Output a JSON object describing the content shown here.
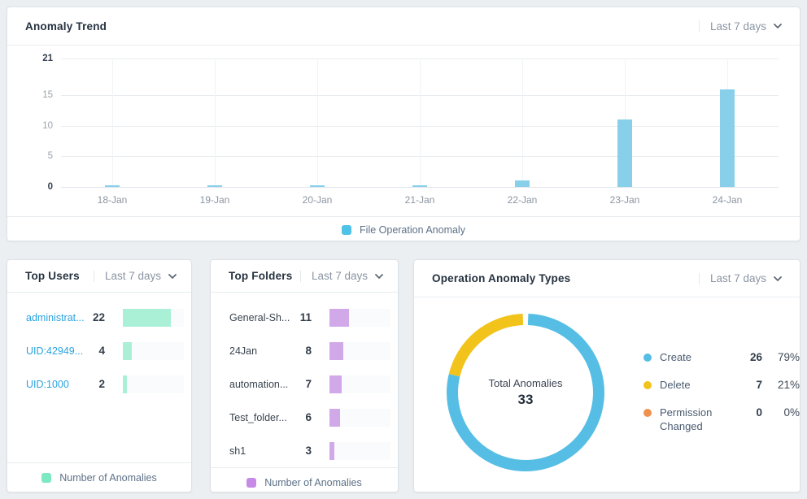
{
  "colors": {
    "trend_bar": "#88d0ea",
    "trend_legend_swatch": "#4fc2e6",
    "users_bar": "#a9f0d7",
    "users_legend_swatch": "#7de9c3",
    "folders_bar": "#d1a9e9",
    "folders_legend_swatch": "#c78ae6",
    "donut_create": "#56bee5",
    "donut_delete": "#f2c31b",
    "donut_permission": "#f0924e",
    "link_blue": "#2aa3e0"
  },
  "icons": {
    "range_chevron": "chevron-down"
  },
  "chart_data": [
    {
      "id": "anomaly-trend",
      "type": "bar",
      "title": "Anomaly Trend",
      "range_label": "Last 7 days",
      "series_name": "File Operation Anomaly",
      "categories": [
        "18-Jan",
        "19-Jan",
        "20-Jan",
        "21-Jan",
        "22-Jan",
        "23-Jan",
        "24-Jan"
      ],
      "values": [
        0,
        0,
        0,
        0,
        1,
        11,
        16
      ],
      "xlabel": "",
      "ylabel": "",
      "ylim": [
        0,
        21
      ],
      "yticks": [
        21,
        15,
        10,
        5,
        0
      ],
      "grid": true,
      "legend_position": "bottom"
    },
    {
      "id": "top-users",
      "type": "bar",
      "orientation": "horizontal",
      "title": "Top Users",
      "range_label": "Last 7 days",
      "series_name": "Number of Anomalies",
      "categories": [
        "administrat...",
        "UID:42949...",
        "UID:1000"
      ],
      "values": [
        22,
        4,
        2
      ],
      "category_style": "link",
      "legend_position": "bottom"
    },
    {
      "id": "top-folders",
      "type": "bar",
      "orientation": "horizontal",
      "title": "Top Folders",
      "range_label": "Last 7 days",
      "series_name": "Number of Anomalies",
      "categories": [
        "General-Sh...",
        "24Jan",
        "automation...",
        "Test_folder...",
        "sh1"
      ],
      "values": [
        11,
        8,
        7,
        6,
        3
      ],
      "category_style": "plain",
      "legend_position": "bottom"
    },
    {
      "id": "operation-anomaly-types",
      "type": "pie",
      "title": "Operation Anomaly Types",
      "range_label": "Last 7 days",
      "center_label": "Total Anomalies",
      "total": 33,
      "labels": [
        "Create",
        "Delete",
        "Permission Changed"
      ],
      "values": [
        26,
        7,
        0
      ],
      "percents": [
        "79%",
        "21%",
        "0%"
      ],
      "slice_colors": [
        "#56bee5",
        "#f2c31b",
        "#f0924e"
      ],
      "legend_position": "right"
    }
  ]
}
